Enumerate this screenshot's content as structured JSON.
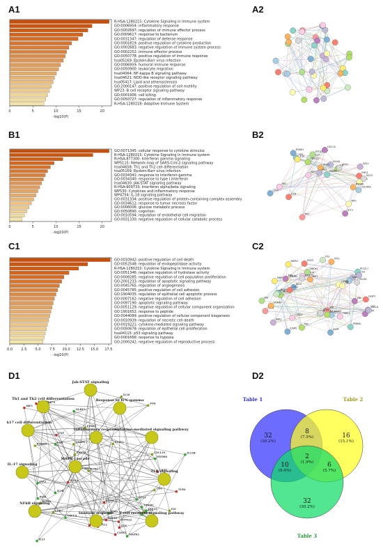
{
  "labels": {
    "a1": "A1",
    "a2": "A2",
    "b1": "B1",
    "b2": "B2",
    "c1": "C1",
    "c2": "C2",
    "d1": "D1",
    "d2": "D2"
  },
  "chart_data": [
    {
      "panel": "A1",
      "type": "bar",
      "orientation": "horizontal",
      "xlabel": "-log10(P)",
      "xlim": [
        0,
        22
      ],
      "xticks": [
        "0",
        "5",
        "10",
        "15",
        "20"
      ],
      "color_scale": [
        "#cc4c02",
        "#f4e4a8"
      ],
      "categories": [
        "R-HSA-1280215: Cytokine Signaling in Immune system",
        "GO:0006954: inflammatory response",
        "GO:0002697: regulation of immune effector process",
        "GO:0009617: response to bacterium",
        "GO:0031347: regulation of defense response",
        "GO:0001819: positive regulation of cytokine production",
        "GO:0002683: negative regulation of immune system process",
        "GO:0002252: immune effector process",
        "GO:0050778: positive regulation of immune response",
        "hsa05169: Epstein-Barr virus infection",
        "GO:0006959: humoral immune response",
        "GO:0050900: leukocyte migration",
        "hsa04064: NF-kappa B signaling pathway",
        "hsa04621: NOD-like receptor signaling pathway",
        "hsa05417: Lipid and atherosclerosis",
        "GO:2000147: positive regulation of cell motility",
        "WP23: B cell receptor signaling pathway",
        "GO:0001906: cell killing",
        "GO:0050727: regulation of inflammatory response",
        "R-HSA-1280218: Adaptive Immune System"
      ],
      "values": [
        21.5,
        17.8,
        16.9,
        15.8,
        14.8,
        13.4,
        12.8,
        12.3,
        12.0,
        11.6,
        11.0,
        10.6,
        10.1,
        9.7,
        9.4,
        9.0,
        8.6,
        8.2,
        7.8,
        7.4
      ]
    },
    {
      "panel": "B1",
      "type": "bar",
      "orientation": "horizontal",
      "xlabel": "-log10(P)",
      "xlim": [
        0,
        22
      ],
      "xticks": [
        "0",
        "5",
        "10",
        "15",
        "20"
      ],
      "color_scale": [
        "#cc4c02",
        "#f4e4a8"
      ],
      "categories": [
        "GO:0071345: cellular response to cytokine stimulus",
        "R-HSA-1280215: Cytokine Signaling in Immune system",
        "R-HSA-877300: Interferon gamma signaling",
        "WP5115: Network map of SARS-CoV-2 signaling pathway",
        "hsa04658: Th1 and Th2 cell differentiation",
        "hsa05169: Epstein-Barr virus infection",
        "GO:0034341: response to interferon-gamma",
        "GO:0034340: response to type I interferon",
        "hsa04630: JAK-STAT signaling pathway",
        "R-HSA-909733: Interferon alpha/beta signaling",
        "WP530: Cytokines and inflammatory response",
        "WP4754: IL-18 signaling pathway",
        "GO:0031334: positive regulation of protein-containing complex assembly",
        "GO:0034612: response to tumor necrosis factor",
        "GO:0006006: glucose metabolic process",
        "GO:0050890: cognition",
        "GO:0010594: regulation of endothelial cell migration",
        "GO:0031330: negative regulation of cellular catabolic process"
      ],
      "values": [
        21.5,
        18.0,
        11.5,
        9.6,
        8.8,
        8.2,
        7.7,
        7.3,
        6.9,
        6.5,
        6.1,
        5.7,
        5.2,
        4.7,
        4.2,
        3.7,
        3.2,
        2.7
      ]
    },
    {
      "panel": "C1",
      "type": "bar",
      "orientation": "horizontal",
      "xlabel": "-log10(P)",
      "xlim": [
        0,
        18
      ],
      "xticks": [
        "0.0",
        "2.5",
        "5.0",
        "7.5",
        "10.0",
        "12.5",
        "15.0",
        "17.5"
      ],
      "color_scale": [
        "#cc4c02",
        "#f4e4a8"
      ],
      "categories": [
        "GO:0010942: positive regulation of cell death",
        "GO:0052548: regulation of endopeptidase activity",
        "R-HSA-1280215: Cytokine Signaling in Immune system",
        "GO:0051346: negative regulation of hydrolase activity",
        "GO:0008285: negative regulation of cell population proliferation",
        "GO:2001233: regulation of apoptotic signaling pathway",
        "GO:0045765: regulation of angiogenesis",
        "GO:0045785: positive regulation of cell adhesion",
        "GO:1904035: regulation of epithelial cell apoptotic process",
        "GO:0007162: negative regulation of cell adhesion",
        "GO:0097190: apoptotic signaling pathway",
        "GO:0051129: negative regulation of cellular component organization",
        "GO:1901652: response to peptide",
        "GO:0044089: positive regulation of cellular component biogenesis",
        "GO:0010939: regulation of necrotic cell death",
        "GO:0019221: cytokine-mediated signaling pathway",
        "GO:0050678: regulation of epithelial cell proliferation",
        "hsa04115: p53 signaling pathway",
        "GO:0001666: response to hypoxia",
        "GO:2000242: negative regulation of reproductive process"
      ],
      "values": [
        17.8,
        13.8,
        12.2,
        10.5,
        9.6,
        9.2,
        8.8,
        8.5,
        8.2,
        7.9,
        7.7,
        7.5,
        7.3,
        7.1,
        6.9,
        6.7,
        6.5,
        6.3,
        6.1,
        5.9
      ]
    },
    {
      "panel": "D2",
      "type": "venn",
      "sets": [
        {
          "name": "Table 1",
          "color": "#3333ff"
        },
        {
          "name": "Table 2",
          "color": "#ffff22"
        },
        {
          "name": "Table 3",
          "color": "#11dd66"
        }
      ],
      "regions": [
        {
          "set": "Table 1 only",
          "count": "32",
          "pct": "(30.2%)"
        },
        {
          "set": "Table 2 only",
          "count": "16",
          "pct": "(15.1%)"
        },
        {
          "set": "Table 3 only",
          "count": "32",
          "pct": "(30.2%)"
        },
        {
          "set": "Table 1 & Table 2",
          "count": "8",
          "pct": "(7.5%)"
        },
        {
          "set": "Table 1 & Table 3",
          "count": "10",
          "pct": "(9.4%)"
        },
        {
          "set": "Table 2 & Table 3",
          "count": "6",
          "pct": "(5.7%)"
        },
        {
          "set": "All three",
          "count": "2",
          "pct": "(1.9%)"
        }
      ]
    }
  ],
  "ppi_networks": {
    "A2": {
      "node_count": 40
    },
    "B2": {
      "nodes": [
        "CD2",
        "TNFA",
        "ICOLB",
        "IFNG1",
        "IFNAR1",
        "STAT1",
        "IL6",
        "IRF1",
        "ISG15",
        "CXCL10",
        "CXCL9",
        "IL18",
        "HLA-DRA",
        "SOCS1",
        "MX1",
        "OAS1",
        "PSMB9",
        "TAP1",
        "JAK2",
        "IL1B",
        "CCL2",
        "MYD88",
        "PTPN22",
        "IRF7",
        "STAT2",
        "IFIT3"
      ]
    },
    "C2": {
      "nodes": [
        "PSMB8",
        "PSMB2",
        "BAX",
        "CASP3",
        "BCL2",
        "TP53",
        "MDM2",
        "CDKN1A",
        "VEGFA",
        "HIF1A",
        "SERPINE1",
        "MMP9",
        "TIMP1",
        "FAS",
        "BID",
        "BAK1",
        "BCL2L1",
        "CASP8",
        "IL6",
        "STAT3",
        "EGFR",
        "AKT1",
        "MYC",
        "CCND1",
        "PTEN",
        "JUN",
        "FOS",
        "MAPK1",
        "MAPK3",
        "HMOX1",
        "SOD2",
        "CAT",
        "NFKBIA",
        "TNF",
        "CXCL8",
        "CCL2",
        "ICAM1",
        "VCAM1",
        "SELE",
        "THBS1",
        "ANGPT2",
        "KDR",
        "NOS3"
      ]
    }
  },
  "d1_network": {
    "hubs": [
      "Jak-STAT signaling",
      "Th1 and Th2 cell differentiation",
      "Response to IFN-gamma",
      "Th17 cell differentiation",
      "Cytokine-mediated signaling pathway",
      "Inflammatory response",
      "IL-17 signaling",
      "MAPK cascade",
      "TLR signaling",
      "NFkB signaling",
      "Immune response",
      "T-cell receptor signaling pathway"
    ],
    "genes": [
      "CD8B1A",
      "IFNG",
      "STAT1",
      "IRF1",
      "IL12B",
      "IL2RA",
      "SOCS3",
      "JAK2",
      "CXCL10",
      "TNF",
      "IL1B",
      "IL6",
      "CCL2",
      "MAPK1",
      "FOS",
      "JUN",
      "NFKB1",
      "RELA",
      "TLR4",
      "MYD88",
      "IL17A",
      "CD3E",
      "LCK",
      "ZAP70",
      "PTPN22",
      "CXCL9",
      "IL18",
      "CASP1",
      "NLRP3",
      "TRAF6",
      "IKBKB",
      "CCL5",
      "CD4",
      "CD28",
      "ICOS",
      "FOXP3",
      "GATA3",
      "TBX21",
      "RORC",
      "IL23A",
      "IL21",
      "CCR7",
      "HLA-DRA",
      "B2M",
      "PSMB9"
    ]
  }
}
